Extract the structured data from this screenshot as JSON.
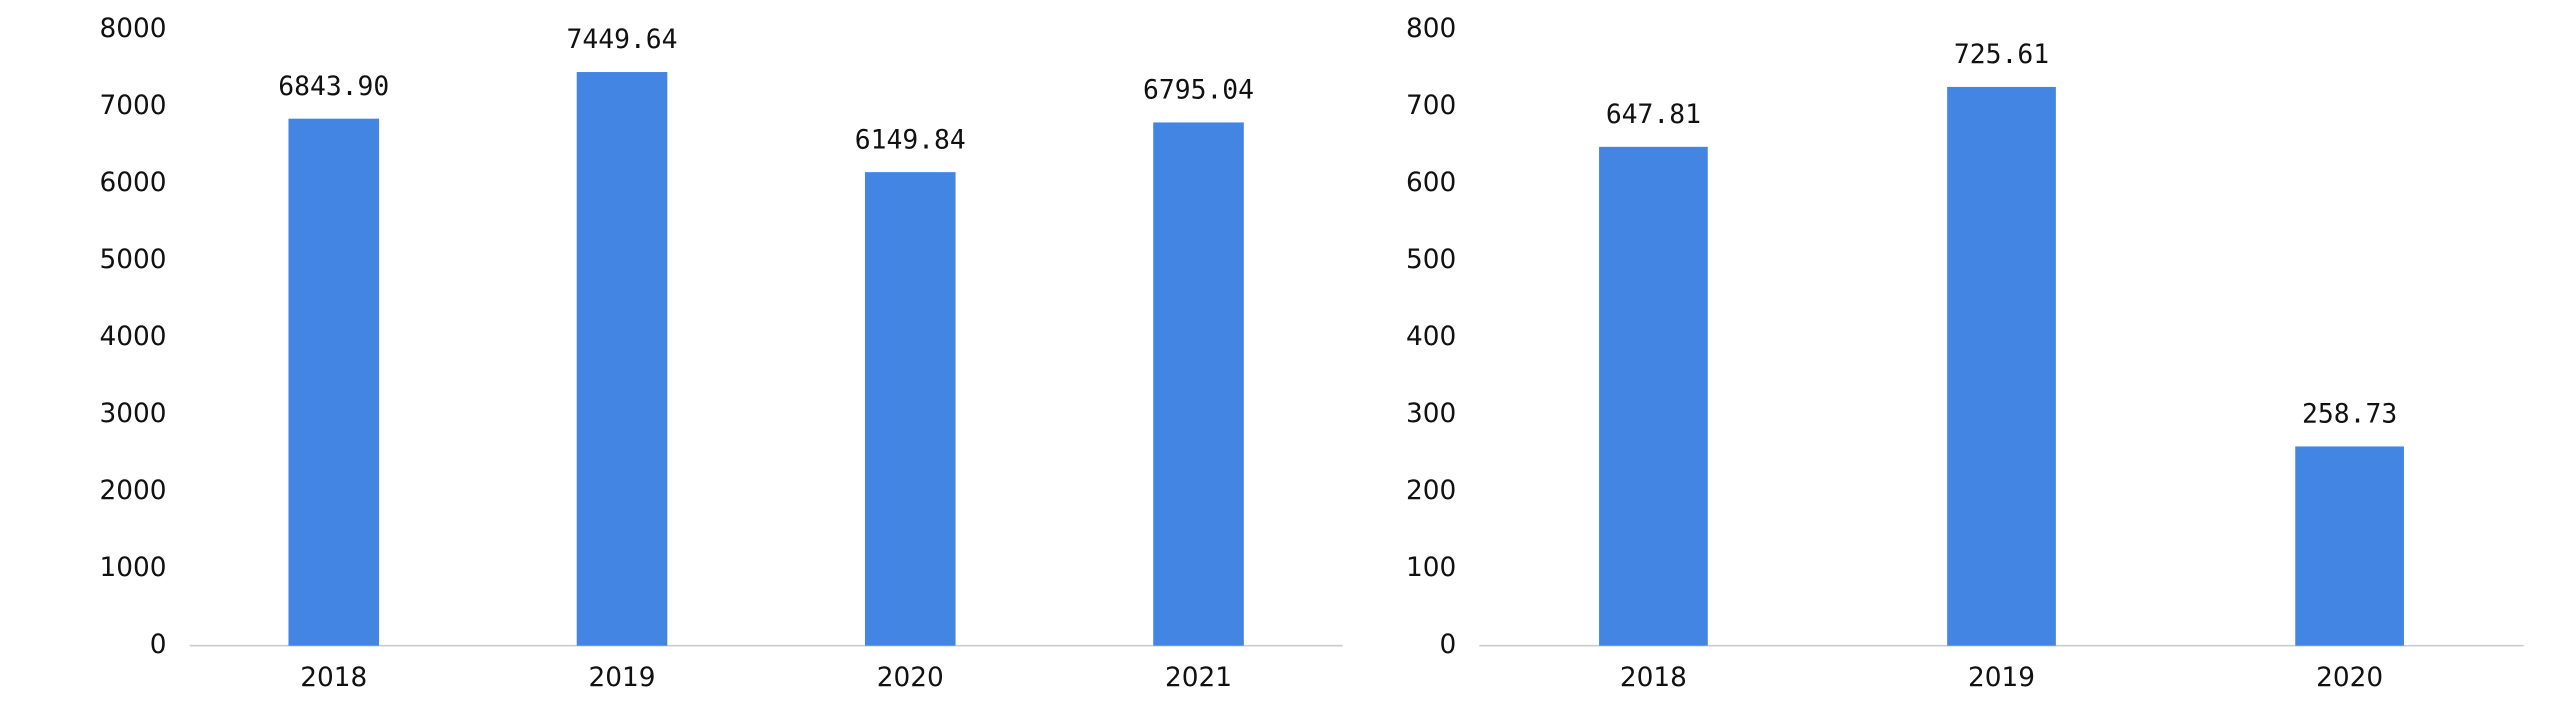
{
  "chart_data": [
    {
      "type": "bar",
      "categories": [
        "2018",
        "2019",
        "2020",
        "2021"
      ],
      "values": [
        6843.9,
        7449.64,
        6149.84,
        6795.04
      ],
      "value_labels": [
        "6843.90",
        "7449.64",
        "6149.84",
        "6795.04"
      ],
      "color": "#4285e3",
      "ylim": [
        0,
        8000
      ],
      "yticks": [
        0,
        1000,
        2000,
        3000,
        4000,
        5000,
        6000,
        7000,
        8000
      ],
      "grid": false
    },
    {
      "type": "bar",
      "categories": [
        "2018",
        "2019",
        "2020"
      ],
      "values": [
        647.81,
        725.61,
        258.73
      ],
      "color": "#4285e3",
      "ylim": [
        0,
        800
      ],
      "yticks": [
        0,
        100,
        200,
        300,
        400,
        500,
        600,
        700,
        800
      ],
      "grid": false
    }
  ]
}
